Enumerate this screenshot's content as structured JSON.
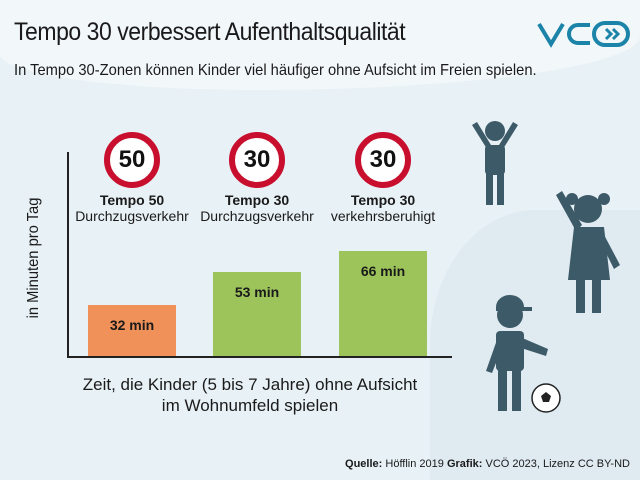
{
  "title": "Tempo 30 verbessert Aufenthaltsqualität",
  "subtitle": "In Tempo 30-Zonen können Kinder viel häufiger ohne Aufsicht im Freien spielen.",
  "logo": "VCÖ",
  "source": {
    "quelle_label": "Quelle:",
    "quelle": "Höfflin 2019",
    "grafik_label": "Grafik:",
    "grafik": "VCÖ 2023, Lizenz CC BY-ND"
  },
  "chart_data": {
    "type": "bar",
    "ylabel": "in Minuten pro Tag",
    "xlabel": "Zeit, die Kinder (5 bis 7 Jahre) ohne Aufsicht im Wohnumfeld spielen",
    "xlabel_lines": [
      "Zeit, die Kinder (5 bis 7 Jahre) ohne Aufsicht",
      "im Wohnumfeld spielen"
    ],
    "categories": [
      {
        "sign": "50",
        "name": "Tempo 50",
        "sub": "Durchzugsverkehr"
      },
      {
        "sign": "30",
        "name": "Tempo 30",
        "sub": "Durchzugsverkehr"
      },
      {
        "sign": "30",
        "name": "Tempo 30",
        "sub": "verkehrsberuhigt"
      }
    ],
    "values": [
      32,
      53,
      66
    ],
    "value_labels": [
      "32 min",
      "53 min",
      "66 min"
    ],
    "colors": [
      "#f0915a",
      "#9dc45a",
      "#9dc45a"
    ],
    "ylim": [
      0,
      130
    ]
  },
  "colors": {
    "figure": "#3d5a68",
    "logo": "#1b84a8",
    "sign_border": "#c8102e"
  }
}
